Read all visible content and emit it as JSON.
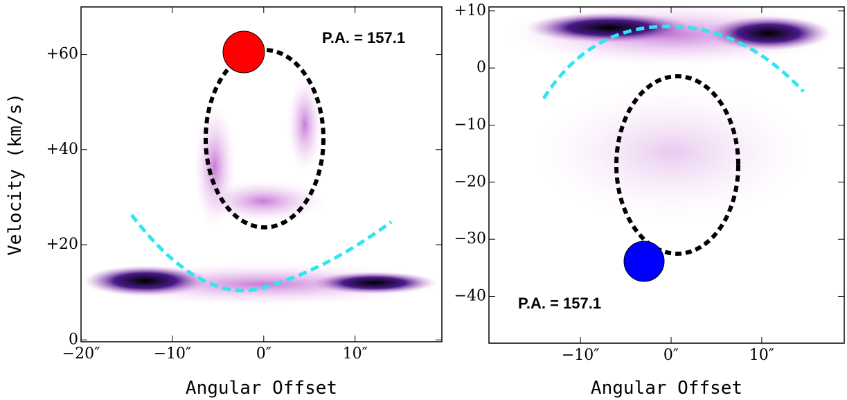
{
  "chart_data": [
    {
      "type": "pv-diagram",
      "xlabel": "Angular Offset",
      "ylabel": "Velocity (km/s)",
      "annotation": "P.A. = 157.1",
      "xlim": [
        -20,
        19.5
      ],
      "ylim": [
        -0.4,
        70
      ],
      "xticks": [
        {
          "value": -20,
          "label": "−20″"
        },
        {
          "value": -10,
          "label": "−10″"
        },
        {
          "value": 0,
          "label": "0″"
        },
        {
          "value": 10,
          "label": "10″"
        }
      ],
      "yticks": [
        0,
        {
          "value": 20,
          "label": "+20"
        },
        {
          "value": 40,
          "label": "+40"
        },
        {
          "value": 60,
          "label": "+60"
        }
      ]
    },
    {
      "type": "pv-diagram",
      "xlabel": "Angular Offset",
      "annotation": "P.A. = 157.1",
      "xlim": [
        -20.1,
        19.1
      ],
      "ylim": [
        -48.2,
        10.7
      ],
      "xticks": [
        {
          "value": -10,
          "label": "−10″"
        },
        {
          "value": 0,
          "label": "0″"
        },
        {
          "value": 10,
          "label": "10″"
        }
      ],
      "yticks": [
        {
          "value": 10,
          "label": "+10"
        },
        0,
        {
          "value": -10,
          "label": "−10"
        },
        {
          "value": -20,
          "label": "−20"
        },
        {
          "value": -30,
          "label": "−30"
        },
        {
          "value": -40,
          "label": "−40"
        }
      ]
    }
  ]
}
